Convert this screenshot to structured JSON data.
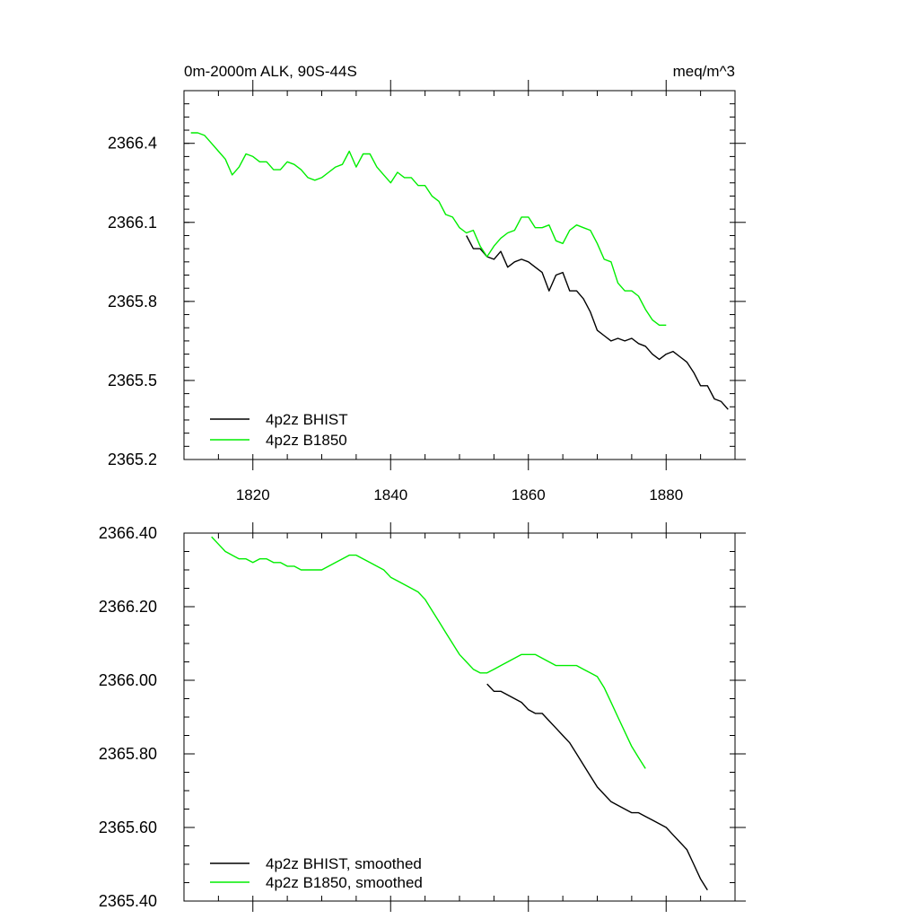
{
  "chart_data": [
    {
      "type": "line",
      "title": "0m-2000m ALK, 90S-44S",
      "units": "meq/m^3",
      "xlabel": "",
      "ylabel": "",
      "xlim": [
        1810,
        1890
      ],
      "ylim": [
        2365.2,
        2366.6
      ],
      "xticks": [
        "1820",
        "1840",
        "1860",
        "1880"
      ],
      "yticks": [
        "2365.2",
        "2365.5",
        "2365.8",
        "2366.1",
        "2366.4"
      ],
      "legend_position": "bottom-left",
      "series": [
        {
          "name": "4p2z BHIST",
          "color": "#000000",
          "x": [
            1851,
            1852,
            1853,
            1854,
            1855,
            1856,
            1857,
            1858,
            1859,
            1860,
            1861,
            1862,
            1863,
            1864,
            1865,
            1866,
            1867,
            1868,
            1869,
            1870,
            1871,
            1872,
            1873,
            1874,
            1875,
            1876,
            1877,
            1878,
            1879,
            1880,
            1881,
            1882,
            1883,
            1884,
            1885,
            1886,
            1887,
            1888,
            1889
          ],
          "y": [
            2366.05,
            2366.0,
            2366.0,
            2365.97,
            2365.96,
            2365.99,
            2365.93,
            2365.95,
            2365.96,
            2365.95,
            2365.93,
            2365.91,
            2365.84,
            2365.9,
            2365.91,
            2365.84,
            2365.84,
            2365.81,
            2365.76,
            2365.69,
            2365.67,
            2365.65,
            2365.66,
            2365.65,
            2365.66,
            2365.64,
            2365.63,
            2365.6,
            2365.58,
            2365.6,
            2365.61,
            2365.59,
            2365.57,
            2365.53,
            2365.48,
            2365.48,
            2365.43,
            2365.42,
            2365.39
          ]
        },
        {
          "name": "4p2z B1850",
          "color": "#00ee00",
          "x": [
            1811,
            1812,
            1813,
            1814,
            1815,
            1816,
            1817,
            1818,
            1819,
            1820,
            1821,
            1822,
            1823,
            1824,
            1825,
            1826,
            1827,
            1828,
            1829,
            1830,
            1831,
            1832,
            1833,
            1834,
            1835,
            1836,
            1837,
            1838,
            1839,
            1840,
            1841,
            1842,
            1843,
            1844,
            1845,
            1846,
            1847,
            1848,
            1849,
            1850,
            1851,
            1852,
            1853,
            1854,
            1855,
            1856,
            1857,
            1858,
            1859,
            1860,
            1861,
            1862,
            1863,
            1864,
            1865,
            1866,
            1867,
            1868,
            1869,
            1870,
            1871,
            1872,
            1873,
            1874,
            1875,
            1876,
            1877,
            1878,
            1879,
            1880
          ],
          "y": [
            2366.44,
            2366.44,
            2366.43,
            2366.4,
            2366.37,
            2366.34,
            2366.28,
            2366.31,
            2366.36,
            2366.35,
            2366.33,
            2366.33,
            2366.3,
            2366.3,
            2366.33,
            2366.32,
            2366.3,
            2366.27,
            2366.26,
            2366.27,
            2366.29,
            2366.31,
            2366.32,
            2366.37,
            2366.31,
            2366.36,
            2366.36,
            2366.31,
            2366.28,
            2366.25,
            2366.29,
            2366.27,
            2366.27,
            2366.24,
            2366.24,
            2366.2,
            2366.18,
            2366.13,
            2366.12,
            2366.08,
            2366.06,
            2366.07,
            2366.01,
            2365.97,
            2366.01,
            2366.04,
            2366.06,
            2366.07,
            2366.12,
            2366.12,
            2366.08,
            2366.08,
            2366.09,
            2366.03,
            2366.02,
            2366.07,
            2366.09,
            2366.08,
            2366.07,
            2366.02,
            2365.96,
            2365.95,
            2365.87,
            2365.84,
            2365.84,
            2365.82,
            2365.77,
            2365.73,
            2365.71,
            2365.71
          ]
        }
      ]
    },
    {
      "type": "line",
      "title": "",
      "xlabel": "",
      "ylabel": "",
      "xlim": [
        1810,
        1890
      ],
      "ylim": [
        2365.4,
        2366.4
      ],
      "xticks": [],
      "yticks": [
        "2365.40",
        "2365.60",
        "2365.80",
        "2366.00",
        "2366.20",
        "2366.40"
      ],
      "legend_position": "bottom-left",
      "series": [
        {
          "name": "4p2z BHIST, smoothed",
          "color": "#000000",
          "x": [
            1854,
            1855,
            1856,
            1857,
            1858,
            1859,
            1860,
            1861,
            1862,
            1863,
            1864,
            1865,
            1866,
            1867,
            1868,
            1869,
            1870,
            1871,
            1872,
            1873,
            1874,
            1875,
            1876,
            1877,
            1878,
            1879,
            1880,
            1881,
            1882,
            1883,
            1884,
            1885,
            1886
          ],
          "y": [
            2365.99,
            2365.97,
            2365.97,
            2365.96,
            2365.95,
            2365.94,
            2365.92,
            2365.91,
            2365.91,
            2365.89,
            2365.87,
            2365.85,
            2365.83,
            2365.8,
            2365.77,
            2365.74,
            2365.71,
            2365.69,
            2365.67,
            2365.66,
            2365.65,
            2365.64,
            2365.64,
            2365.63,
            2365.62,
            2365.61,
            2365.6,
            2365.58,
            2365.56,
            2365.54,
            2365.5,
            2365.46,
            2365.43
          ]
        },
        {
          "name": "4p2z B1850, smoothed",
          "color": "#00ee00",
          "x": [
            1814,
            1815,
            1816,
            1817,
            1818,
            1819,
            1820,
            1821,
            1822,
            1823,
            1824,
            1825,
            1826,
            1827,
            1828,
            1829,
            1830,
            1831,
            1832,
            1833,
            1834,
            1835,
            1836,
            1837,
            1838,
            1839,
            1840,
            1841,
            1842,
            1843,
            1844,
            1845,
            1846,
            1847,
            1848,
            1849,
            1850,
            1851,
            1852,
            1853,
            1854,
            1855,
            1856,
            1857,
            1858,
            1859,
            1860,
            1861,
            1862,
            1863,
            1864,
            1865,
            1866,
            1867,
            1868,
            1869,
            1870,
            1871,
            1872,
            1873,
            1874,
            1875,
            1876,
            1877
          ],
          "y": [
            2366.39,
            2366.37,
            2366.35,
            2366.34,
            2366.33,
            2366.33,
            2366.32,
            2366.33,
            2366.33,
            2366.32,
            2366.32,
            2366.31,
            2366.31,
            2366.3,
            2366.3,
            2366.3,
            2366.3,
            2366.31,
            2366.32,
            2366.33,
            2366.34,
            2366.34,
            2366.33,
            2366.32,
            2366.31,
            2366.3,
            2366.28,
            2366.27,
            2366.26,
            2366.25,
            2366.24,
            2366.22,
            2366.19,
            2366.16,
            2366.13,
            2366.1,
            2366.07,
            2366.05,
            2366.03,
            2366.02,
            2366.02,
            2366.03,
            2366.04,
            2366.05,
            2366.06,
            2366.07,
            2366.07,
            2366.07,
            2366.06,
            2366.05,
            2366.04,
            2366.04,
            2366.04,
            2366.04,
            2366.03,
            2366.02,
            2366.01,
            2365.98,
            2365.94,
            2365.9,
            2365.86,
            2365.82,
            2365.79,
            2365.76
          ]
        }
      ]
    }
  ]
}
